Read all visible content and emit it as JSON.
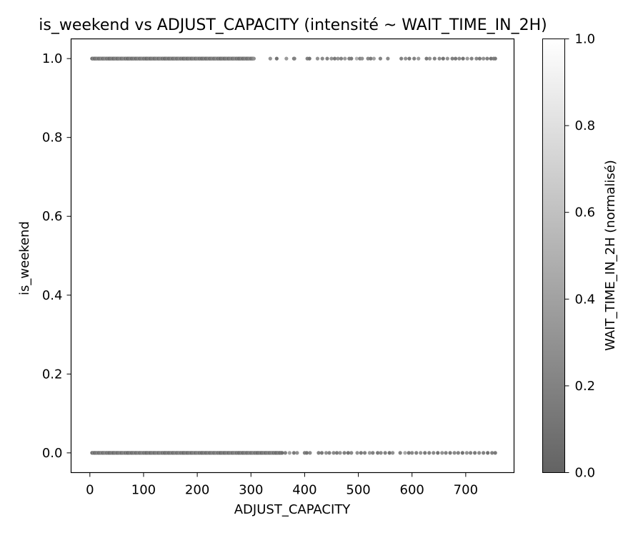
{
  "chart_data": {
    "type": "scatter",
    "title": "is_weekend vs ADJUST_CAPACITY (intensité ~ WAIT_TIME_IN_2H)",
    "xlabel": "ADJUST_CAPACITY",
    "ylabel": "is_weekend",
    "xlim": [
      -35,
      790
    ],
    "ylim": [
      -0.05,
      1.05
    ],
    "x_ticks": [
      "0",
      "100",
      "200",
      "300",
      "400",
      "500",
      "600",
      "700"
    ],
    "y_ticks": [
      "0.0",
      "0.2",
      "0.4",
      "0.6",
      "0.8",
      "1.0"
    ],
    "grid": false,
    "colormap": "gray",
    "color_range": [
      0.0,
      1.0
    ],
    "colorbar": {
      "label": "WAIT_TIME_IN_2H (normalisé)",
      "ticks": [
        "0.0",
        "0.2",
        "0.4",
        "0.6",
        "0.8",
        "1.0"
      ],
      "range": [
        0.0,
        1.0
      ]
    },
    "series": [
      {
        "y": 1.0,
        "dense_ranges": [
          [
            4,
            306
          ]
        ],
        "points": [
          [
            336,
            0.3
          ],
          [
            348,
            0.1
          ],
          [
            366,
            0.35
          ],
          [
            380,
            0.15
          ],
          [
            381,
            0.2
          ],
          [
            405,
            0.2
          ],
          [
            409,
            0.1
          ],
          [
            424,
            0.3
          ],
          [
            433,
            0.25
          ],
          [
            442,
            0.2
          ],
          [
            450,
            0.3
          ],
          [
            456,
            0.15
          ],
          [
            462,
            0.3
          ],
          [
            468,
            0.2
          ],
          [
            475,
            0.35
          ],
          [
            483,
            0.2
          ],
          [
            487,
            0.15
          ],
          [
            497,
            0.5
          ],
          [
            503,
            0.2
          ],
          [
            507,
            0.3
          ],
          [
            518,
            0.25
          ],
          [
            523,
            0.15
          ],
          [
            529,
            0.4
          ],
          [
            541,
            0.2
          ],
          [
            555,
            0.25
          ],
          [
            580,
            0.2
          ],
          [
            588,
            0.3
          ],
          [
            595,
            0.15
          ],
          [
            604,
            0.2
          ],
          [
            612,
            0.35
          ],
          [
            627,
            0.15
          ],
          [
            633,
            0.3
          ],
          [
            642,
            0.2
          ],
          [
            651,
            0.25
          ],
          [
            658,
            0.1
          ],
          [
            666,
            0.3
          ],
          [
            675,
            0.2
          ],
          [
            681,
            0.15
          ],
          [
            688,
            0.25
          ],
          [
            695,
            0.1
          ],
          [
            703,
            0.35
          ],
          [
            711,
            0.2
          ],
          [
            720,
            0.25
          ],
          [
            726,
            0.15
          ],
          [
            733,
            0.3
          ],
          [
            740,
            0.2
          ],
          [
            747,
            0.1
          ],
          [
            752,
            0.2
          ],
          [
            755,
            0.15
          ]
        ]
      },
      {
        "y": 0.0,
        "dense_ranges": [
          [
            4,
            358
          ]
        ],
        "points": [
          [
            364,
            0.2
          ],
          [
            372,
            0.4
          ],
          [
            380,
            0.15
          ],
          [
            386,
            0.3
          ],
          [
            400,
            0.2
          ],
          [
            404,
            0.1
          ],
          [
            410,
            0.25
          ],
          [
            426,
            0.2
          ],
          [
            432,
            0.15
          ],
          [
            440,
            0.3
          ],
          [
            446,
            0.2
          ],
          [
            454,
            0.25
          ],
          [
            460,
            0.15
          ],
          [
            466,
            0.3
          ],
          [
            474,
            0.2
          ],
          [
            481,
            0.1
          ],
          [
            487,
            0.25
          ],
          [
            498,
            0.3
          ],
          [
            505,
            0.15
          ],
          [
            512,
            0.2
          ],
          [
            521,
            0.35
          ],
          [
            527,
            0.2
          ],
          [
            536,
            0.15
          ],
          [
            542,
            0.25
          ],
          [
            550,
            0.2
          ],
          [
            558,
            0.1
          ],
          [
            564,
            0.3
          ],
          [
            578,
            0.2
          ],
          [
            587,
            0.45
          ],
          [
            594,
            0.15
          ],
          [
            600,
            0.25
          ],
          [
            608,
            0.2
          ],
          [
            616,
            0.3
          ],
          [
            624,
            0.15
          ],
          [
            632,
            0.2
          ],
          [
            640,
            0.25
          ],
          [
            648,
            0.1
          ],
          [
            656,
            0.3
          ],
          [
            663,
            0.2
          ],
          [
            671,
            0.15
          ],
          [
            679,
            0.25
          ],
          [
            686,
            0.2
          ],
          [
            694,
            0.1
          ],
          [
            702,
            0.3
          ],
          [
            709,
            0.2
          ],
          [
            717,
            0.15
          ],
          [
            725,
            0.25
          ],
          [
            733,
            0.2
          ],
          [
            741,
            0.1
          ],
          [
            749,
            0.2
          ],
          [
            755,
            0.15
          ]
        ]
      }
    ]
  }
}
